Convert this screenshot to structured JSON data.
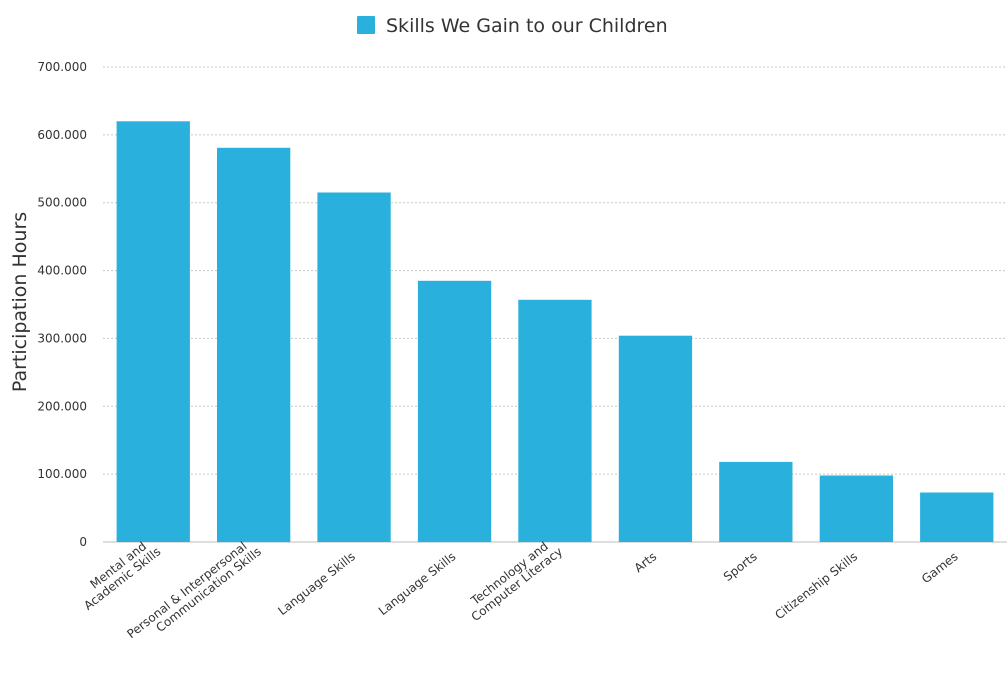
{
  "chart_data": {
    "type": "bar",
    "title": "",
    "xlabel": "",
    "ylabel": "Participation Hours",
    "ylim": [
      0,
      700000
    ],
    "yticks": [
      0,
      100000,
      200000,
      300000,
      400000,
      500000,
      600000,
      700000
    ],
    "ytick_labels": [
      "0",
      "100.000",
      "200.000",
      "300.000",
      "400.000",
      "500.000",
      "600.000",
      "700.000"
    ],
    "grid": true,
    "legend_position": "top-center",
    "categories": [
      [
        "Mental and",
        "Academic Skills"
      ],
      [
        "Personal & Interpersonal",
        "Communication Skills"
      ],
      [
        "Language Skills"
      ],
      [
        "Language Skills"
      ],
      [
        "Technology and",
        "Computer Literacy"
      ],
      [
        "Arts"
      ],
      [
        "Sports"
      ],
      [
        "Citizenship Skills"
      ],
      [
        "Games"
      ]
    ],
    "series": [
      {
        "name": "Skills We Gain to our Children",
        "color": "#29b0dc",
        "values": [
          620000,
          581000,
          515000,
          385000,
          357000,
          304000,
          118000,
          98000,
          73000
        ]
      }
    ]
  }
}
